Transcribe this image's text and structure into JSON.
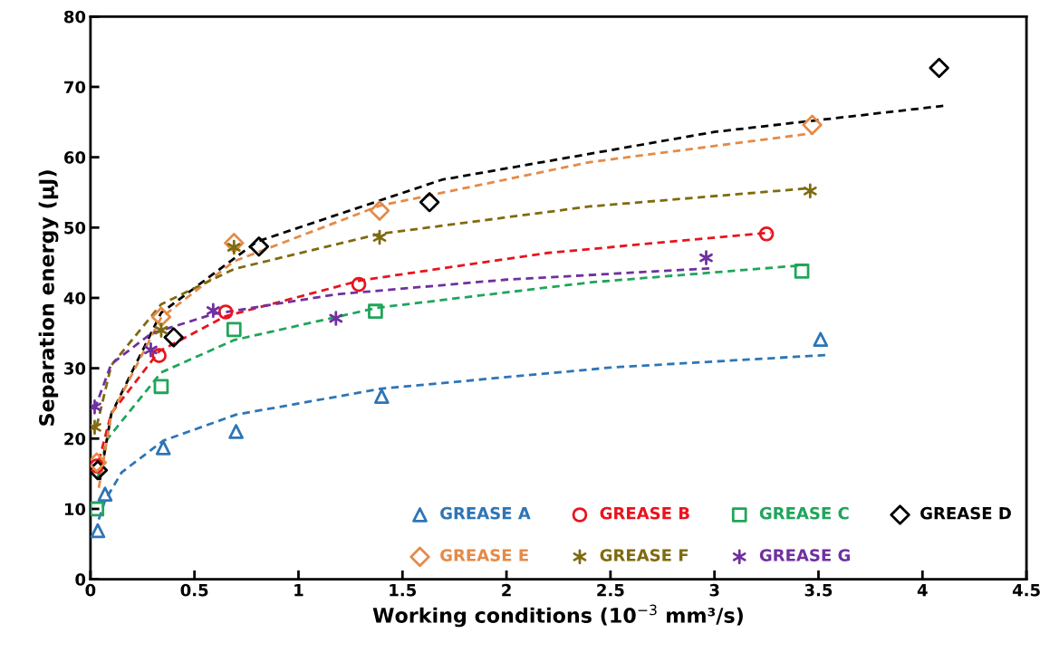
{
  "chart_data": {
    "type": "scatter",
    "xlabel": "Working conditions (10$^{−3}$ mm³/s)",
    "ylabel": "Separation energy (µJ)",
    "xlim": [
      0,
      4.5
    ],
    "xticks": [
      0,
      0.5,
      1,
      1.5,
      2,
      2.5,
      3,
      3.5,
      4,
      4.5
    ],
    "ylim": [
      0,
      80
    ],
    "yticks": [
      0,
      10,
      20,
      30,
      40,
      50,
      60,
      70,
      80
    ],
    "grid": false,
    "legend": "bottom right",
    "series": [
      {
        "type": "line",
        "line_style": "dashed",
        "marker": "none",
        "color": "#2e75b6",
        "x": [
          0.04,
          0.07,
          0.15,
          0.35,
          0.7,
          1.4,
          2.5,
          3.55
        ],
        "values": [
          8.5,
          11.2,
          15.2,
          19.7,
          23.4,
          27.1,
          30.1,
          31.9
        ]
      },
      {
        "type": "line",
        "line_style": "dashed",
        "marker": "none",
        "color": "#e8141e",
        "x": [
          0.04,
          0.1,
          0.33,
          0.65,
          1.3,
          2.2,
          3.27
        ],
        "values": [
          16.8,
          23.6,
          32.4,
          37.4,
          42.5,
          46.4,
          49.3
        ]
      },
      {
        "type": "line",
        "line_style": "dashed",
        "marker": "none",
        "color": "#1fa55a",
        "x": [
          0.035,
          0.08,
          0.34,
          0.69,
          1.38,
          2.4,
          3.45
        ],
        "values": [
          14.4,
          19.9,
          29.4,
          34.0,
          38.6,
          42.2,
          44.7
        ]
      },
      {
        "type": "line",
        "line_style": "dashed",
        "marker": "none",
        "color": "#000000",
        "x": [
          0.045,
          0.1,
          0.34,
          0.8,
          1.69,
          3.0,
          4.1
        ],
        "values": [
          14.1,
          23.5,
          37.9,
          48.0,
          56.8,
          63.6,
          67.3
        ]
      },
      {
        "type": "line",
        "line_style": "dashed",
        "marker": "none",
        "color": "#e58a47",
        "x": [
          0.04,
          0.1,
          0.34,
          0.69,
          1.39,
          2.4,
          3.47
        ],
        "values": [
          13.0,
          23.4,
          37.2,
          45.2,
          53.1,
          59.3,
          63.4
        ]
      },
      {
        "type": "line",
        "line_style": "dashed",
        "marker": "none",
        "color": "#7f6b0f",
        "x": [
          0.03,
          0.1,
          0.34,
          0.69,
          1.39,
          2.4,
          3.46
        ],
        "values": [
          21.8,
          30.4,
          39.1,
          44.1,
          49.1,
          53.0,
          55.6
        ]
      },
      {
        "type": "line",
        "line_style": "dashed",
        "marker": "none",
        "color": "#7030a0",
        "x": [
          0.02,
          0.1,
          0.29,
          0.59,
          1.18,
          2.0,
          2.98
        ],
        "values": [
          24.2,
          30.6,
          34.9,
          37.7,
          40.5,
          42.6,
          44.2
        ]
      },
      {
        "name": "GREASE A",
        "marker": "triangle",
        "color": "#2e75b6",
        "x": [
          0.035,
          0.07,
          0.35,
          0.7,
          1.4,
          3.51
        ],
        "values": [
          6.9,
          12.1,
          18.7,
          21.0,
          26.0,
          34.1
        ]
      },
      {
        "name": "GREASE B",
        "marker": "circle",
        "color": "#e8141e",
        "x": [
          0.03,
          0.33,
          0.65,
          1.29,
          3.25
        ],
        "values": [
          16.1,
          31.8,
          38.0,
          41.9,
          49.1
        ]
      },
      {
        "name": "GREASE C",
        "marker": "square",
        "color": "#1fa55a",
        "x": [
          0.03,
          0.34,
          0.69,
          1.37,
          3.42
        ],
        "values": [
          10.0,
          27.4,
          35.5,
          38.1,
          43.8
        ]
      },
      {
        "name": "GREASE D",
        "marker": "diamond",
        "color": "#000000",
        "x": [
          0.035,
          0.4,
          0.81,
          1.63,
          4.08
        ],
        "values": [
          15.5,
          34.4,
          47.3,
          53.6,
          72.7
        ]
      },
      {
        "name": "GREASE E",
        "marker": "diamond",
        "color": "#e58a47",
        "x": [
          0.03,
          0.34,
          0.69,
          1.39,
          3.47
        ],
        "values": [
          16.6,
          37.3,
          47.8,
          52.4,
          64.6
        ]
      },
      {
        "name": "GREASE F",
        "marker": "cross",
        "color": "#7f6b0f",
        "x": [
          0.02,
          0.34,
          0.69,
          1.39,
          3.46
        ],
        "values": [
          21.6,
          35.4,
          47.2,
          48.6,
          55.2
        ]
      },
      {
        "name": "GREASE G",
        "marker": "cross",
        "color": "#7030a0",
        "x": [
          0.02,
          0.29,
          0.59,
          1.18,
          2.96
        ],
        "values": [
          24.5,
          32.6,
          38.2,
          37.1,
          45.7
        ]
      }
    ]
  }
}
